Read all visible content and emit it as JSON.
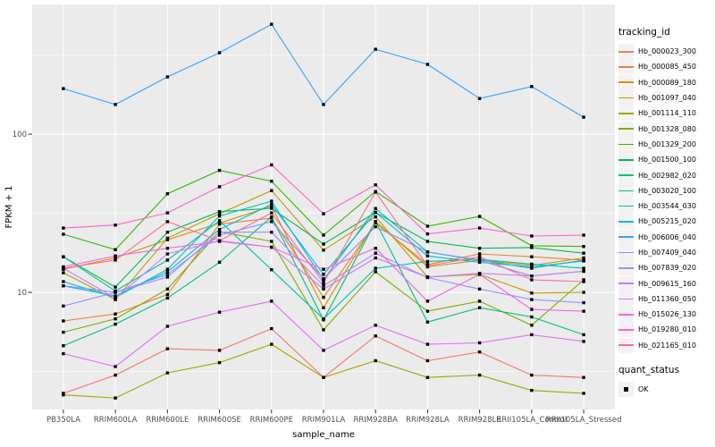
{
  "figure": {
    "x_axis_title": "sample_name",
    "y_axis_title": "FPKM + 1",
    "legend": {
      "tracking_title": "tracking_id",
      "quant_title": "quant_status",
      "quant_item_label": "OK"
    }
  },
  "chart_data": {
    "type": "line",
    "title": "",
    "xlabel": "sample_name",
    "ylabel": "FPKM + 1",
    "y_scale": "log10",
    "ylim": [
      1.82,
      660
    ],
    "y_major_ticks": [
      10,
      100
    ],
    "y_minor_gridlines": [
      3.1623,
      31.623,
      316.23
    ],
    "grid": true,
    "legend_position": "right",
    "point_shape": "filled-black-square",
    "panel_color": "#EBEBEB",
    "grid_color": "#FFFFFF",
    "categories": [
      "PB350LA",
      "RRIM600LA",
      "RRIM600LE",
      "RRIM600SE",
      "RRIM600PE",
      "RRIM901LA",
      "RRIM928BA",
      "RRIM928LA",
      "RRIM928LE",
      "RRII105LA_Control",
      "RRII105LA_Stressed"
    ],
    "series": [
      {
        "name": "Hb_000023_300",
        "color": "#F8766D",
        "values": [
          2.3,
          3.0,
          4.4,
          4.3,
          5.9,
          2.9,
          5.3,
          3.7,
          4.2,
          3.0,
          2.9
        ]
      },
      {
        "name": "Hb_000085_450",
        "color": "#EA8331",
        "values": [
          6.6,
          7.3,
          9.7,
          27.0,
          29.5,
          9.3,
          27.5,
          15.0,
          17.5,
          16.8,
          16.0
        ]
      },
      {
        "name": "Hb_000089_180",
        "color": "#D89000",
        "values": [
          14.0,
          16.5,
          21.5,
          27.4,
          35.0,
          8.0,
          28.0,
          14.5,
          16.0,
          14.8,
          16.5
        ]
      },
      {
        "name": "Hb_001097_040",
        "color": "#C09B00",
        "values": [
          13.3,
          9.0,
          22.0,
          31.4,
          44.0,
          18.5,
          30.0,
          12.5,
          13.0,
          9.9,
          10.0
        ]
      },
      {
        "name": "Hb_001114_110",
        "color": "#A3A500",
        "values": [
          2.25,
          2.15,
          3.1,
          3.6,
          4.7,
          2.9,
          3.7,
          2.9,
          3.0,
          2.4,
          2.3
        ]
      },
      {
        "name": "Hb_001328_080",
        "color": "#7CAE00",
        "values": [
          5.6,
          6.8,
          10.5,
          24.2,
          21.0,
          5.8,
          13.5,
          7.6,
          8.8,
          6.2,
          12.0
        ]
      },
      {
        "name": "Hb_001329_200",
        "color": "#39B600",
        "values": [
          23.3,
          18.6,
          42.0,
          59.0,
          50.4,
          23.0,
          43.4,
          26.2,
          30.2,
          19.7,
          19.5
        ]
      },
      {
        "name": "Hb_001500_100",
        "color": "#00BB4E",
        "values": [
          16.8,
          10.8,
          24.0,
          32.4,
          34.0,
          20.2,
          32.0,
          21.0,
          19.0,
          19.2,
          17.7
        ]
      },
      {
        "name": "Hb_002982_020",
        "color": "#00BF7D",
        "values": [
          4.6,
          6.3,
          9.2,
          15.5,
          30.0,
          6.7,
          28.0,
          6.5,
          8.0,
          7.0,
          5.4
        ]
      },
      {
        "name": "Hb_003020_100",
        "color": "#00C1A7",
        "values": [
          16.8,
          10.2,
          16.0,
          28.4,
          13.9,
          6.8,
          14.2,
          15.7,
          16.2,
          15.1,
          14.2
        ]
      },
      {
        "name": "Hb_003544_030",
        "color": "#00BFC4",
        "values": [
          11.7,
          9.3,
          14.0,
          30.4,
          37.7,
          12.0,
          33.9,
          18.0,
          16.0,
          14.2,
          16.0
        ]
      },
      {
        "name": "Hb_005215_020",
        "color": "#00B8E5",
        "values": [
          11.0,
          9.5,
          13.5,
          25.0,
          36.0,
          13.0,
          32.0,
          17.0,
          15.5,
          14.5,
          15.8
        ]
      },
      {
        "name": "Hb_006006_040",
        "color": "#35A2FF",
        "values": [
          194,
          154,
          230,
          327,
          495,
          154,
          344,
          276,
          168,
          200,
          128
        ]
      },
      {
        "name": "Hb_007409_040",
        "color": "#7997FF",
        "values": [
          11.0,
          10.0,
          13.0,
          23.0,
          28.0,
          12.2,
          26.0,
          18.0,
          15.9,
          12.7,
          13.6
        ]
      },
      {
        "name": "Hb_007839_020",
        "color": "#9C8DFF",
        "values": [
          8.2,
          10.0,
          12.5,
          24.0,
          24.0,
          11.0,
          17.7,
          12.4,
          10.5,
          9.0,
          8.6
        ]
      },
      {
        "name": "Hb_009615_160",
        "color": "#C77CFF",
        "values": [
          14.2,
          9.2,
          17.5,
          21.2,
          19.3,
          10.5,
          16.5,
          12.5,
          13.2,
          12.7,
          13.6
        ]
      },
      {
        "name": "Hb_011360_050",
        "color": "#E36EF6",
        "values": [
          4.1,
          3.4,
          6.1,
          7.5,
          8.8,
          4.3,
          6.2,
          4.7,
          4.8,
          5.4,
          4.9
        ]
      },
      {
        "name": "Hb_015026_130",
        "color": "#F564E3",
        "values": [
          14.5,
          17.0,
          19.0,
          21.0,
          19.3,
          14.0,
          19.0,
          8.8,
          13.0,
          7.8,
          7.6
        ]
      },
      {
        "name": "Hb_019280_010",
        "color": "#FF61C9",
        "values": [
          25.5,
          26.6,
          31.8,
          46.5,
          64.0,
          31.4,
          47.8,
          23.4,
          25.5,
          22.7,
          23.0
        ]
      },
      {
        "name": "Hb_021165_010",
        "color": "#FF6B94",
        "values": [
          14.2,
          16.0,
          28.0,
          21.2,
          31.8,
          11.5,
          43.0,
          14.7,
          16.8,
          12.0,
          11.7
        ]
      }
    ],
    "quant_status": "OK"
  }
}
